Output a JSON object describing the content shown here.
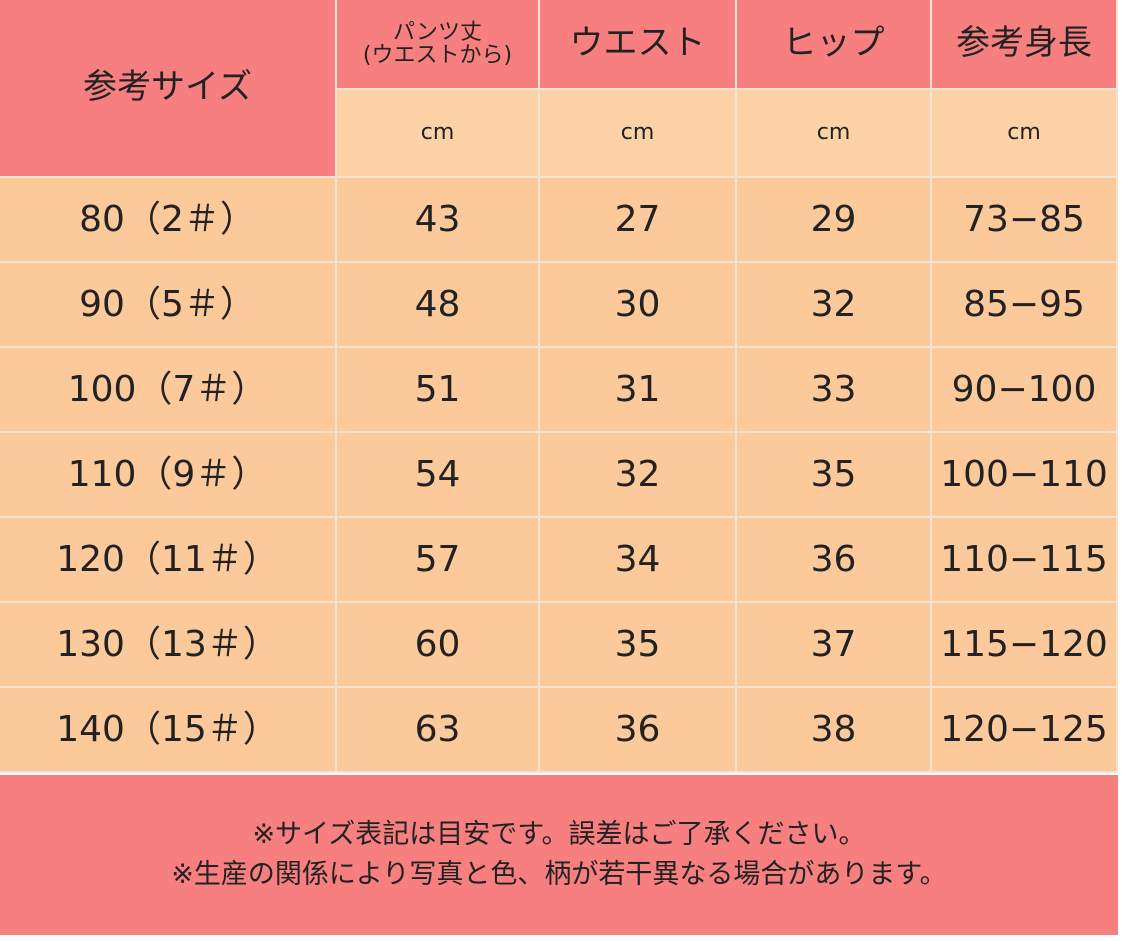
{
  "table": {
    "corner": "参考サイズ",
    "columns": [
      [
        "パンツ丈",
        "(ウエストから)"
      ],
      [
        "ウエスト"
      ],
      [
        "ヒップ"
      ],
      [
        "参考身長"
      ]
    ],
    "units": [
      "cm",
      "cm",
      "cm",
      "cm"
    ],
    "rows": [
      [
        "80（2＃）",
        "43",
        "27",
        "29",
        "73−85"
      ],
      [
        "90（5＃）",
        "48",
        "30",
        "32",
        "85−95"
      ],
      [
        "100（7＃）",
        "51",
        "31",
        "33",
        "90−100"
      ],
      [
        "110（9＃）",
        "54",
        "32",
        "35",
        "100−110"
      ],
      [
        "120（11＃）",
        "57",
        "34",
        "36",
        "110−115"
      ],
      [
        "130（13＃）",
        "60",
        "35",
        "37",
        "115−120"
      ],
      [
        "140（15＃）",
        "63",
        "36",
        "38",
        "120−125"
      ]
    ]
  },
  "notes": [
    "※サイズ表記は目安です。誤差はご了承ください。",
    "※生産の関係により写真と色、柄が若干異なる場合があります。"
  ]
}
